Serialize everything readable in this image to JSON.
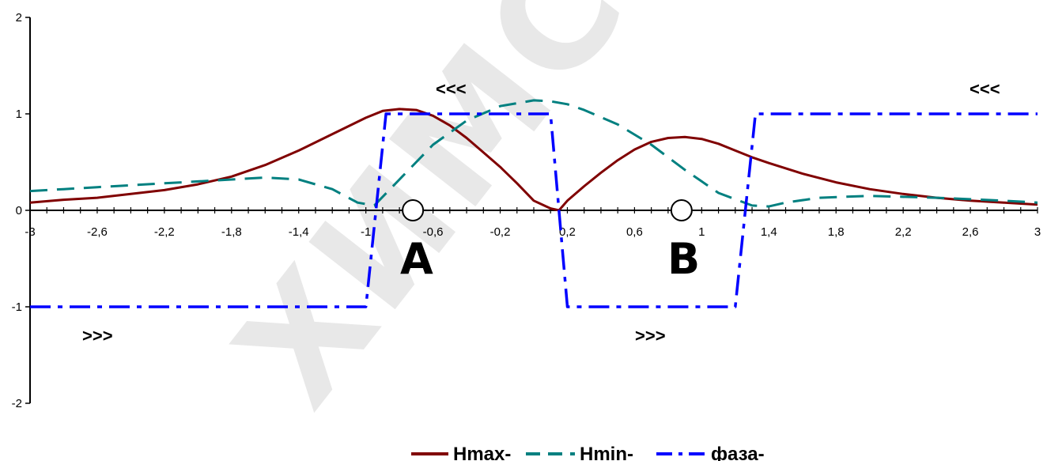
{
  "watermark": "ХИМСЕРВИС",
  "chart_data": {
    "type": "line",
    "xlim": [
      -3,
      3
    ],
    "ylim": [
      -2,
      2
    ],
    "x_ticks": [
      -3,
      -2.6,
      -2.2,
      -1.8,
      -1.4,
      -1,
      -0.6,
      -0.2,
      0.2,
      0.6,
      1,
      1.4,
      1.8,
      2.2,
      2.6,
      3
    ],
    "x_tick_labels": [
      "-3",
      "-2,6",
      "-2,2",
      "-1,8",
      "-1,4",
      "-1",
      "-0,6",
      "-0,2",
      "0,2",
      "0,6",
      "1",
      "1,4",
      "1,8",
      "2,2",
      "2,6",
      "3"
    ],
    "y_ticks": [
      -2,
      -1,
      0,
      1,
      2
    ],
    "y_tick_labels": [
      "-2",
      "-1",
      "0",
      "1",
      "2"
    ],
    "grid": false,
    "legend_position": "bottom",
    "series": [
      {
        "name": "Hmax-",
        "color": "#800000",
        "dash": "solid",
        "x": [
          -3,
          -2.8,
          -2.6,
          -2.4,
          -2.2,
          -2,
          -1.8,
          -1.6,
          -1.4,
          -1.2,
          -1,
          -0.9,
          -0.8,
          -0.7,
          -0.6,
          -0.5,
          -0.4,
          -0.3,
          -0.2,
          -0.1,
          0,
          0.1,
          0.15,
          0.2,
          0.3,
          0.4,
          0.5,
          0.6,
          0.7,
          0.8,
          0.9,
          1.0,
          1.1,
          1.2,
          1.3,
          1.4,
          1.6,
          1.8,
          2.0,
          2.2,
          2.4,
          2.6,
          2.8,
          3
        ],
        "y": [
          0.08,
          0.11,
          0.13,
          0.17,
          0.21,
          0.27,
          0.35,
          0.47,
          0.62,
          0.79,
          0.96,
          1.03,
          1.05,
          1.04,
          0.98,
          0.88,
          0.75,
          0.6,
          0.45,
          0.28,
          0.1,
          0.02,
          0.0,
          0.1,
          0.25,
          0.39,
          0.52,
          0.63,
          0.71,
          0.75,
          0.76,
          0.74,
          0.69,
          0.62,
          0.55,
          0.49,
          0.38,
          0.29,
          0.22,
          0.17,
          0.13,
          0.1,
          0.08,
          0.06
        ]
      },
      {
        "name": "Hmin-",
        "color": "#008080",
        "dash": "dash",
        "x": [
          -3,
          -2.8,
          -2.6,
          -2.4,
          -2.2,
          -2,
          -1.8,
          -1.6,
          -1.4,
          -1.2,
          -1.05,
          -0.95,
          -0.8,
          -0.6,
          -0.4,
          -0.2,
          0,
          0.1,
          0.2,
          0.3,
          0.5,
          0.7,
          0.9,
          1.1,
          1.3,
          1.4,
          1.5,
          1.7,
          2.0,
          2.4,
          2.8,
          3
        ],
        "y": [
          0.2,
          0.22,
          0.24,
          0.26,
          0.28,
          0.3,
          0.32,
          0.34,
          0.32,
          0.22,
          0.08,
          0.05,
          0.32,
          0.68,
          0.93,
          1.08,
          1.14,
          1.13,
          1.1,
          1.04,
          0.89,
          0.68,
          0.42,
          0.18,
          0.05,
          0.04,
          0.08,
          0.13,
          0.15,
          0.13,
          0.1,
          0.08
        ]
      },
      {
        "name": "фаза-",
        "color": "#0000ff",
        "dash": "dashdot",
        "x": [
          -3,
          -1.0,
          -0.88,
          0,
          0.1,
          0.2,
          1.2,
          1.32,
          3
        ],
        "y": [
          -1,
          -1,
          1,
          1,
          1,
          -1,
          -1,
          1,
          1
        ]
      }
    ]
  },
  "annotations": {
    "top_left_arrows": "<<<",
    "top_right_arrows": "<<<",
    "bottom_left_arrows": ">>>",
    "bottom_right_arrows": ">>>",
    "label_a": "A",
    "label_b": "B"
  },
  "markers": [
    {
      "label": "A",
      "x": -0.72,
      "y": 0
    },
    {
      "label": "B",
      "x": 0.88,
      "y": 0
    }
  ],
  "legend": {
    "items": [
      "Hmax-",
      "Hmin-",
      "фаза-"
    ]
  }
}
